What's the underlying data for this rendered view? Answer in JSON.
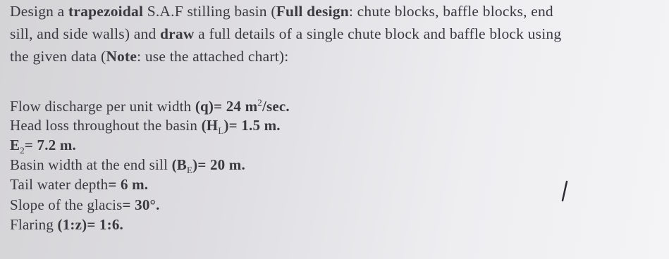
{
  "intro": {
    "lines": [
      [
        {
          "text": "Design a "
        },
        {
          "text": "trapezoidal",
          "bold": true
        },
        {
          "text": " S.A.F stilling basin ("
        },
        {
          "text": "Full design",
          "bold": true
        },
        {
          "text": ": chute blocks, baffle blocks, end"
        }
      ],
      [
        {
          "text": "sill, and side walls) and "
        },
        {
          "text": "draw",
          "bold": true
        },
        {
          "text": " a full details of a single chute block and baffle block using"
        }
      ],
      [
        {
          "text": "the given data ("
        },
        {
          "text": "Note",
          "bold": true
        },
        {
          "text": ": use the attached chart):"
        }
      ]
    ]
  },
  "data_items": [
    [
      {
        "text": "Flow discharge per unit width "
      },
      {
        "text": "(q)= 24 m",
        "bold": true
      },
      {
        "text": "2",
        "sup": true
      },
      {
        "text": "/sec.",
        "bold": true
      }
    ],
    [
      {
        "text": "Head loss throughout the basin "
      },
      {
        "text": "(H",
        "bold": true
      },
      {
        "text": "L",
        "sub": true
      },
      {
        "text": ")= 1.5 m.",
        "bold": true
      }
    ],
    [
      {
        "text": "E",
        "bold": true
      },
      {
        "text": "2",
        "sub": true
      },
      {
        "text": "= 7.2 m.",
        "bold": true
      }
    ],
    [
      {
        "text": "Basin width at the end sill "
      },
      {
        "text": "(B",
        "bold": true
      },
      {
        "text": "E",
        "sub": true
      },
      {
        "text": ")= 20 m.",
        "bold": true
      }
    ],
    [
      {
        "text": "Tail water depth"
      },
      {
        "text": "= 6 m.",
        "bold": true
      }
    ],
    [
      {
        "text": "Slope of the glacis"
      },
      {
        "text": "= 30°.",
        "bold": true
      }
    ],
    [
      {
        "text": "Flaring "
      },
      {
        "text": "(1:z)= 1:6.",
        "bold": true
      }
    ]
  ]
}
